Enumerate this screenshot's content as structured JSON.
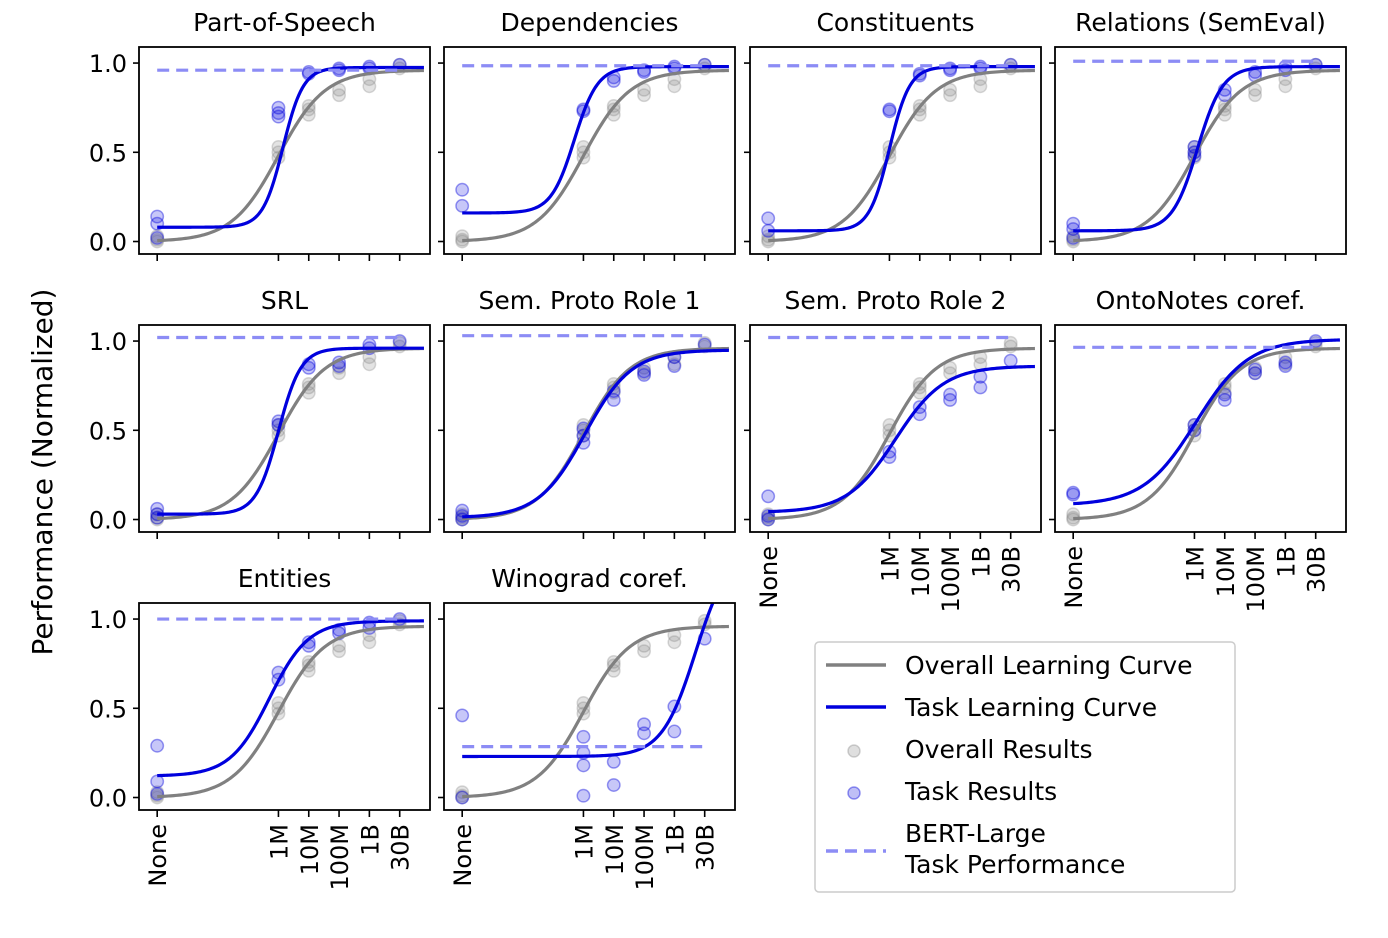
{
  "figure": {
    "ylabel": "Performance (Normalized)",
    "colors": {
      "overall": "#808080",
      "task": "#0000dd",
      "bert": "#8c8cf5"
    }
  },
  "legend": {
    "overall_curve": "Overall Learning Curve",
    "task_curve": "Task Learning Curve",
    "overall_results": "Overall Results",
    "task_results": "Task Results",
    "bert_line1": "BERT-Large",
    "bert_line2": "Task Performance"
  },
  "chart_data": [
    {
      "type": "scatter+line",
      "title": "Part-of-Speech",
      "ytick_labels": [
        "1.0",
        "0.5",
        "0.0"
      ],
      "xtick_labels": [],
      "ylim": [
        -0.07,
        1.09
      ],
      "bert_large": 0.96,
      "task_curve": {
        "L": 0.08,
        "U": 0.975,
        "x0": 4.15,
        "k": 3.0
      },
      "task_points": [
        [
          0,
          0.14
        ],
        [
          0,
          0.1
        ],
        [
          0,
          0.02
        ],
        [
          4,
          0.75
        ],
        [
          4,
          0.72
        ],
        [
          4,
          0.7
        ],
        [
          5,
          0.95
        ],
        [
          5,
          0.94
        ],
        [
          6,
          0.97
        ],
        [
          6,
          0.96
        ],
        [
          7,
          0.98
        ],
        [
          7,
          0.97
        ],
        [
          8,
          0.99
        ]
      ]
    },
    {
      "type": "scatter+line",
      "title": "Dependencies",
      "ytick_labels": [],
      "xtick_labels": [],
      "ylim": [
        -0.07,
        1.09
      ],
      "bert_large": 0.985,
      "task_curve": {
        "L": 0.16,
        "U": 0.98,
        "x0": 3.7,
        "k": 2.6
      },
      "task_points": [
        [
          0,
          0.29
        ],
        [
          0,
          0.2
        ],
        [
          4,
          0.74
        ],
        [
          4,
          0.73
        ],
        [
          5,
          0.92
        ],
        [
          5,
          0.9
        ],
        [
          6,
          0.96
        ],
        [
          6,
          0.95
        ],
        [
          7,
          0.98
        ],
        [
          7,
          0.97
        ],
        [
          8,
          0.99
        ]
      ]
    },
    {
      "type": "scatter+line",
      "title": "Constituents",
      "ytick_labels": [],
      "xtick_labels": [],
      "ylim": [
        -0.07,
        1.09
      ],
      "bert_large": 0.985,
      "task_curve": {
        "L": 0.06,
        "U": 0.98,
        "x0": 4.0,
        "k": 3.0
      },
      "task_points": [
        [
          0,
          0.13
        ],
        [
          0,
          0.06
        ],
        [
          4,
          0.74
        ],
        [
          4,
          0.73
        ],
        [
          5,
          0.94
        ],
        [
          5,
          0.93
        ],
        [
          6,
          0.97
        ],
        [
          6,
          0.96
        ],
        [
          7,
          0.98
        ],
        [
          7,
          0.97
        ],
        [
          8,
          0.99
        ]
      ]
    },
    {
      "type": "scatter+line",
      "title": "Relations (SemEval)",
      "ytick_labels": [],
      "xtick_labels": [],
      "ylim": [
        -0.07,
        1.09
      ],
      "bert_large": 1.01,
      "task_curve": {
        "L": 0.06,
        "U": 0.98,
        "x0": 4.1,
        "k": 2.4
      },
      "task_points": [
        [
          0,
          0.1
        ],
        [
          0,
          0.07
        ],
        [
          0,
          0.02
        ],
        [
          4,
          0.53
        ],
        [
          4,
          0.5
        ],
        [
          4,
          0.48
        ],
        [
          5,
          0.85
        ],
        [
          5,
          0.82
        ],
        [
          6,
          0.95
        ],
        [
          6,
          0.93
        ],
        [
          7,
          0.98
        ],
        [
          7,
          0.96
        ],
        [
          8,
          0.99
        ]
      ]
    },
    {
      "type": "scatter+line",
      "title": "SRL",
      "ytick_labels": [
        "1.0",
        "0.5",
        "0.0"
      ],
      "xtick_labels": [],
      "ylim": [
        -0.07,
        1.09
      ],
      "bert_large": 1.02,
      "task_curve": {
        "L": 0.03,
        "U": 0.96,
        "x0": 4.0,
        "k": 2.7
      },
      "task_points": [
        [
          0,
          0.06
        ],
        [
          0,
          0.03
        ],
        [
          0,
          0.01
        ],
        [
          4,
          0.55
        ],
        [
          4,
          0.53
        ],
        [
          5,
          0.87
        ],
        [
          5,
          0.85
        ],
        [
          6,
          0.88
        ],
        [
          6,
          0.86
        ],
        [
          7,
          0.98
        ],
        [
          7,
          0.96
        ],
        [
          8,
          1.0
        ]
      ]
    },
    {
      "type": "scatter+line",
      "title": "Sem. Proto Role 1",
      "ytick_labels": [],
      "xtick_labels": [],
      "ylim": [
        -0.07,
        1.09
      ],
      "bert_large": 1.03,
      "task_curve": {
        "L": 0.01,
        "U": 0.95,
        "x0": 4.05,
        "k": 1.3
      },
      "task_points": [
        [
          0,
          0.05
        ],
        [
          0,
          0.02
        ],
        [
          0,
          0.0
        ],
        [
          4,
          0.51
        ],
        [
          4,
          0.47
        ],
        [
          4,
          0.43
        ],
        [
          5,
          0.72
        ],
        [
          5,
          0.67
        ],
        [
          6,
          0.83
        ],
        [
          6,
          0.81
        ],
        [
          7,
          0.91
        ],
        [
          7,
          0.86
        ],
        [
          8,
          0.98
        ]
      ]
    },
    {
      "type": "scatter+line",
      "title": "Sem. Proto Role 2",
      "ytick_labels": [],
      "xtick_labels": [
        "None",
        "1M",
        "10M",
        "100M",
        "1B",
        "30B"
      ],
      "ylim": [
        -0.07,
        1.09
      ],
      "bert_large": 1.02,
      "task_curve": {
        "L": 0.04,
        "U": 0.86,
        "x0": 4.2,
        "k": 1.25
      },
      "task_points": [
        [
          0,
          0.13
        ],
        [
          0,
          0.02
        ],
        [
          0,
          0.0
        ],
        [
          4,
          0.38
        ],
        [
          4,
          0.35
        ],
        [
          5,
          0.63
        ],
        [
          5,
          0.59
        ],
        [
          6,
          0.7
        ],
        [
          6,
          0.67
        ],
        [
          7,
          0.8
        ],
        [
          7,
          0.74
        ],
        [
          8,
          0.89
        ]
      ]
    },
    {
      "type": "scatter+line",
      "title": "OntoNotes coref.",
      "ytick_labels": [],
      "xtick_labels": [
        "None",
        "1M",
        "10M",
        "100M",
        "1B",
        "30B"
      ],
      "ylim": [
        -0.07,
        1.09
      ],
      "bert_large": 0.965,
      "task_curve": {
        "L": 0.08,
        "U": 1.01,
        "x0": 4.05,
        "k": 1.15
      },
      "task_points": [
        [
          0,
          0.15
        ],
        [
          0,
          0.14
        ],
        [
          4,
          0.53
        ],
        [
          4,
          0.5
        ],
        [
          5,
          0.7
        ],
        [
          5,
          0.67
        ],
        [
          6,
          0.84
        ],
        [
          6,
          0.82
        ],
        [
          7,
          0.88
        ],
        [
          7,
          0.86
        ],
        [
          8,
          1.0
        ]
      ]
    },
    {
      "type": "scatter+line",
      "title": "Entities",
      "ytick_labels": [
        "1.0",
        "0.5",
        "0.0"
      ],
      "xtick_labels": [
        "None",
        "1M",
        "10M",
        "100M",
        "1B",
        "30B"
      ],
      "ylim": [
        -0.07,
        1.09
      ],
      "bert_large": 1.0,
      "task_curve": {
        "L": 0.12,
        "U": 0.99,
        "x0": 3.7,
        "k": 1.55
      },
      "task_points": [
        [
          0,
          0.29
        ],
        [
          0,
          0.09
        ],
        [
          0,
          0.02
        ],
        [
          4,
          0.7
        ],
        [
          4,
          0.66
        ],
        [
          5,
          0.87
        ],
        [
          5,
          0.85
        ],
        [
          6,
          0.94
        ],
        [
          6,
          0.92
        ],
        [
          7,
          0.98
        ],
        [
          7,
          0.95
        ],
        [
          8,
          1.0
        ]
      ]
    },
    {
      "type": "scatter+line",
      "title": "Winograd coref.",
      "ytick_labels": [],
      "xtick_labels": [
        "None",
        "1M",
        "10M",
        "100M",
        "1B",
        "30B"
      ],
      "ylim": [
        -0.07,
        1.09
      ],
      "bert_large": 0.285,
      "task_curve": {
        "L": 0.23,
        "U": 1.4,
        "x0": 7.7,
        "k": 1.8
      },
      "task_points": [
        [
          0,
          0.46
        ],
        [
          0,
          0.0
        ],
        [
          4,
          0.34
        ],
        [
          4,
          0.25
        ],
        [
          4,
          0.18
        ],
        [
          4,
          0.01
        ],
        [
          5,
          0.2
        ],
        [
          5,
          0.07
        ],
        [
          6,
          0.41
        ],
        [
          6,
          0.36
        ],
        [
          7,
          0.51
        ],
        [
          7,
          0.37
        ],
        [
          8,
          0.89
        ]
      ]
    }
  ],
  "overall": {
    "curve": {
      "L": 0.0,
      "U": 0.96,
      "x0": 4.0,
      "k": 1.3
    },
    "points": [
      [
        0,
        0.03
      ],
      [
        0,
        0.01
      ],
      [
        0,
        0.0
      ],
      [
        4,
        0.53
      ],
      [
        4,
        0.5
      ],
      [
        4,
        0.47
      ],
      [
        5,
        0.76
      ],
      [
        5,
        0.74
      ],
      [
        5,
        0.71
      ],
      [
        6,
        0.85
      ],
      [
        6,
        0.82
      ],
      [
        7,
        0.91
      ],
      [
        7,
        0.87
      ],
      [
        8,
        0.99
      ],
      [
        8,
        0.97
      ]
    ]
  }
}
